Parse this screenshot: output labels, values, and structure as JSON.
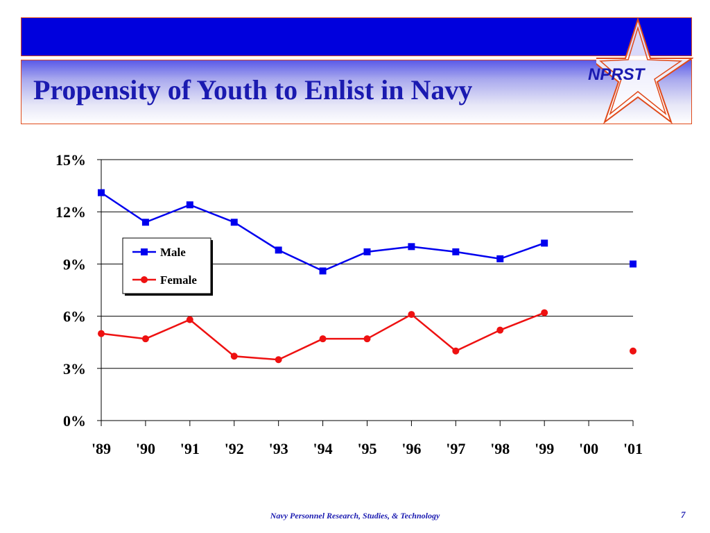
{
  "slide": {
    "title": "Propensity of Youth to Enlist in Navy",
    "logo_text": "NPRST",
    "footer": "Navy Personnel Research, Studies, & Technology",
    "page_number": "7",
    "colors": {
      "bar": "#0000dd",
      "border": "#e04a1a",
      "title": "#1a1ab0"
    }
  },
  "chart_data": {
    "type": "line",
    "title": "",
    "xlabel": "",
    "ylabel": "",
    "categories": [
      "'89",
      "'90",
      "'91",
      "'92",
      "'93",
      "'94",
      "'95",
      "'96",
      "'97",
      "'98",
      "'99",
      "'00",
      "'01"
    ],
    "yticks": [
      "0%",
      "3%",
      "6%",
      "9%",
      "12%",
      "15%"
    ],
    "ylim": [
      0,
      15
    ],
    "grid": true,
    "legend_placement": "upper-left inside plot",
    "series": [
      {
        "name": "Male",
        "color": "#0000ee",
        "marker": "square",
        "values": [
          13.1,
          11.4,
          12.4,
          11.4,
          9.8,
          8.6,
          9.7,
          10.0,
          9.7,
          9.3,
          10.2,
          null,
          9.0
        ]
      },
      {
        "name": "Female",
        "color": "#ee1111",
        "marker": "circle",
        "values": [
          5.0,
          4.7,
          5.8,
          3.7,
          3.5,
          4.7,
          4.7,
          6.1,
          4.0,
          5.2,
          6.2,
          null,
          4.0
        ]
      }
    ]
  }
}
